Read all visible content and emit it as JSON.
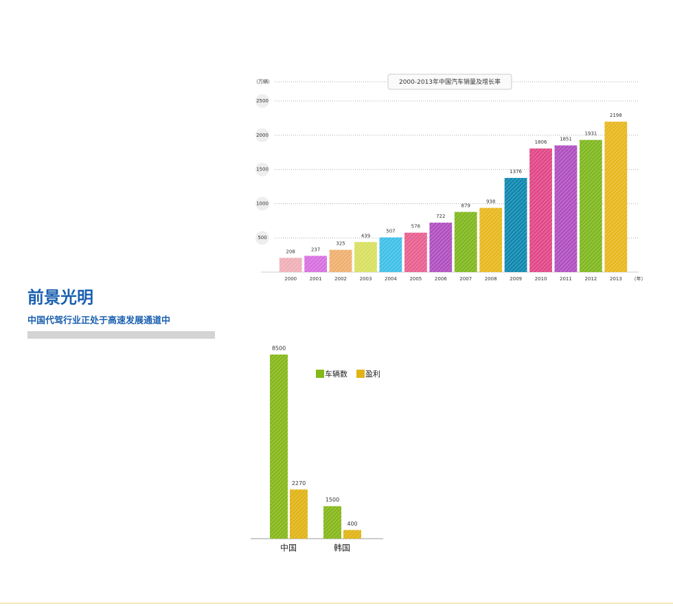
{
  "header": {
    "title": "前景光明",
    "subtitle": "中国代驾行业正处于高速发展通道中"
  },
  "chart_data": [
    {
      "type": "bar",
      "title": "2000-2013年中国汽车销量及增长率",
      "y_label": "（万辆）",
      "x_label": "（年）",
      "categories": [
        "2000",
        "2001",
        "2002",
        "2003",
        "2004",
        "2005",
        "2006",
        "2007",
        "2008",
        "2009",
        "2010",
        "2011",
        "2012",
        "2013"
      ],
      "values": [
        208,
        237,
        325,
        439,
        507,
        576,
        722,
        879,
        938,
        1376,
        1806,
        1851,
        1931,
        2198
      ],
      "colors": [
        "#f0b0b8",
        "#d870e0",
        "#f0b070",
        "#d8e060",
        "#40c0e8",
        "#e86090",
        "#b050c0",
        "#80b820",
        "#e8b820",
        "#1088b0",
        "#e04888",
        "#b050c0",
        "#80b820",
        "#e8b820"
      ],
      "ylim": [
        0,
        2500
      ],
      "yticks": [
        500,
        1000,
        1500,
        2000,
        2500
      ],
      "grid": true
    },
    {
      "type": "grouped-bar",
      "categories": [
        "中国",
        "韩国"
      ],
      "series": [
        {
          "name": "车辆数",
          "color": "#86b81a",
          "values": [
            8500,
            1500
          ]
        },
        {
          "name": "盈利",
          "color": "#e0b416",
          "values": [
            2270,
            400
          ]
        }
      ],
      "ylim": [
        0,
        8500
      ]
    }
  ]
}
